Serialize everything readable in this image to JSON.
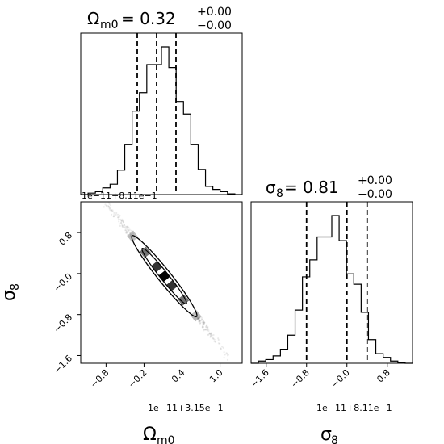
{
  "chart_data": [
    {
      "type": "histogram",
      "panel": "top-left",
      "title_main": "Ω",
      "title_sub": "m0",
      "title_value": " = 0.32",
      "title_plus": "+0.00",
      "title_minus": "−0.00",
      "bin_counts": [
        0,
        2,
        4,
        9,
        14,
        33,
        68,
        113,
        138,
        176,
        176,
        200,
        172,
        126,
        109,
        68,
        34,
        11,
        7,
        4,
        1,
        0
      ],
      "quantile_fractions": [
        0.35,
        0.47,
        0.59
      ],
      "offset_label": "1e−11+8.11e−1"
    },
    {
      "type": "histogram",
      "panel": "bottom-right",
      "title_main": "σ",
      "title_sub": "8",
      "title_value": " = 0.81",
      "title_plus": "+0.00",
      "title_minus": "−0.00",
      "bin_counts": [
        0,
        3,
        5,
        10,
        19,
        38,
        72,
        117,
        140,
        171,
        171,
        200,
        166,
        121,
        107,
        69,
        32,
        13,
        8,
        3,
        1,
        0
      ],
      "xlim": [
        -1.9,
        1.3
      ],
      "xticks": [
        -1.6,
        -0.8,
        0.0,
        0.8
      ],
      "xtick_labels": [
        "−1.6",
        "−0.8",
        "−0.0",
        "0.8"
      ],
      "quantiles": [
        -0.8,
        -0.0,
        0.4
      ],
      "offset_label": "1e−11+8.11e−1",
      "xlabel_main": "σ",
      "xlabel_sub": "8"
    },
    {
      "type": "scatter",
      "panel": "bottom-left",
      "xlim": [
        -1.2,
        1.35
      ],
      "ylim": [
        -1.75,
        1.4
      ],
      "xticks": [
        -0.8,
        -0.2,
        0.4,
        1.0
      ],
      "xtick_labels": [
        "−0.8",
        "−0.2",
        "0.4",
        "1.0"
      ],
      "yticks": [
        -1.6,
        -0.8,
        -0.0,
        0.8
      ],
      "ytick_labels": [
        "−1.6",
        "−0.8",
        "−0.0",
        "0.8"
      ],
      "correlation_slope": -1.0,
      "x_offset_label": "1e−11+3.15e−1",
      "xlabel_main": "Ω",
      "xlabel_sub": "m0",
      "ylabel_main": "σ",
      "ylabel_sub": "8"
    }
  ]
}
